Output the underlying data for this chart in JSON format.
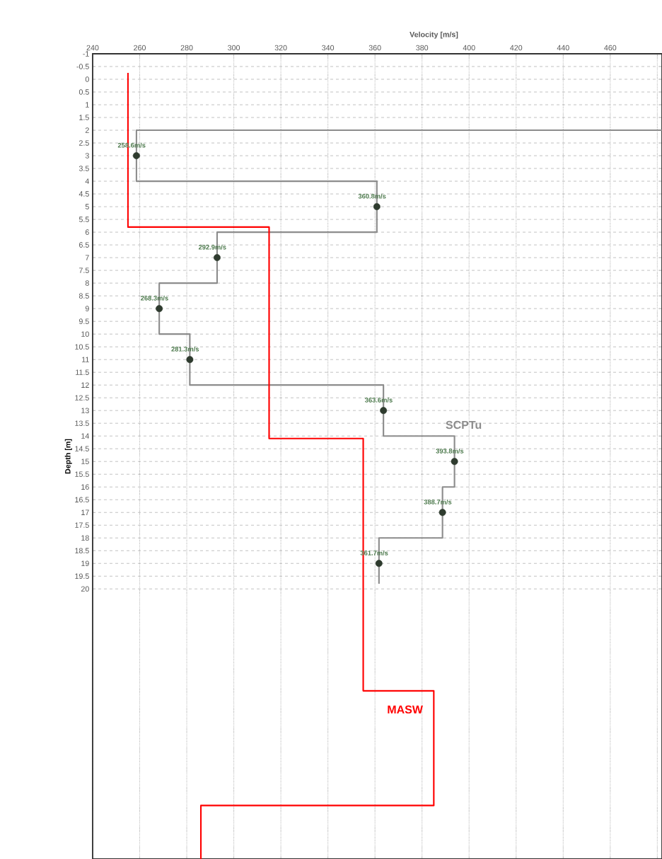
{
  "chart_data": {
    "type": "line",
    "orientation": "horizontal",
    "xlabel": "Velocity [m/s]",
    "ylabel": "Depth [m]",
    "xlim": [
      240,
      482
    ],
    "ylim": [
      30.6,
      -1
    ],
    "xticks": [
      240,
      260,
      280,
      300,
      320,
      340,
      360,
      380,
      400,
      420,
      440,
      460,
      {
        "value": 480,
        "label": null
      }
    ],
    "yticks": [
      -1,
      -0.5,
      0,
      0.5,
      1,
      1.5,
      2,
      2.5,
      3,
      3.5,
      4,
      4.5,
      5,
      5.5,
      6,
      6.5,
      7,
      7.5,
      8,
      8.5,
      9,
      9.5,
      10,
      10.5,
      11,
      11.5,
      12,
      12.5,
      13,
      13.5,
      14,
      14.5,
      15,
      15.5,
      16,
      16.5,
      17,
      17.5,
      18,
      18.5,
      19,
      19.5,
      20
    ],
    "grid": true,
    "series": [
      {
        "color": "#8c8c8c",
        "values": [
          482,
          258.6,
          258.6,
          360.8,
          360.8,
          292.9,
          292.9,
          268.3,
          268.3,
          281.3,
          281.3,
          363.6,
          363.6,
          393.8,
          393.8,
          388.7,
          388.7,
          361.7,
          361.7
        ],
        "x": [
          2,
          2,
          4,
          4,
          6,
          6,
          8,
          8,
          10,
          10,
          12,
          12,
          14,
          14,
          16,
          16,
          18,
          18,
          19.8
        ]
      },
      {
        "color": "#ff0000",
        "values": [
          255,
          255,
          315,
          315,
          355,
          355,
          385,
          385,
          286,
          286
        ],
        "x": [
          -0.25,
          5.8,
          5.8,
          14.1,
          14.1,
          24,
          24,
          28.5,
          28.5,
          30.6
        ]
      },
      {
        "type": "scatter",
        "color": "#2e3b2e",
        "marker": "circle",
        "values": [
          258.6,
          360.8,
          292.9,
          268.3,
          281.3,
          363.6,
          393.8,
          388.7,
          361.7
        ],
        "x": [
          3,
          5,
          7,
          9,
          11,
          13,
          15,
          17,
          19
        ],
        "value_labels": [
          "258.6m/s",
          "360.8m/s",
          "292.9m/s",
          "268.3m/s",
          "281.3m/s",
          "363.6m/s",
          "393.8m/s",
          "388.7m/s",
          "361.7m/s"
        ]
      }
    ],
    "annotations": [
      {
        "text": "SCPTu",
        "x": 393.8,
        "y": 14
      },
      {
        "text": "MASW",
        "x": 385,
        "y": 24
      }
    ]
  }
}
